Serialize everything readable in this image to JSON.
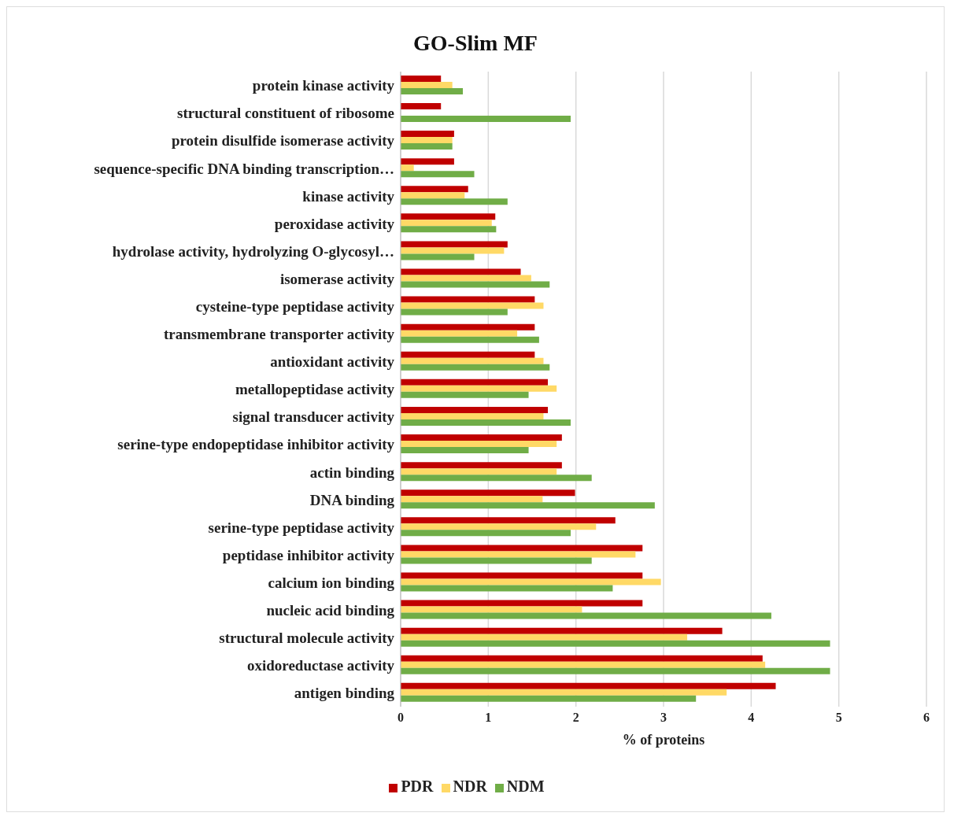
{
  "chart_data": {
    "type": "bar",
    "orientation": "horizontal",
    "title": "GO-Slim MF",
    "xlabel": "% of proteins",
    "categories": [
      "protein kinase activity",
      "structural constituent of ribosome",
      "protein disulfide isomerase activity",
      "sequence-specific DNA binding transcription…",
      "kinase activity",
      "peroxidase activity",
      "hydrolase activity, hydrolyzing O-glycosyl…",
      "isomerase activity",
      "cysteine-type peptidase activity",
      "transmembrane transporter activity",
      "antioxidant activity",
      "metallopeptidase activity",
      "signal transducer activity",
      "serine-type endopeptidase inhibitor activity",
      "actin binding",
      "DNA binding",
      "serine-type peptidase activity",
      "peptidase inhibitor activity",
      "calcium ion binding",
      "nucleic acid binding",
      "structural molecule activity",
      "oxidoreductase activity",
      "antigen binding"
    ],
    "series": [
      {
        "name": "PDR",
        "color": "#c00000",
        "values": [
          0.46,
          0.46,
          0.61,
          0.61,
          0.77,
          1.08,
          1.22,
          1.37,
          1.53,
          1.53,
          1.53,
          1.68,
          1.68,
          1.84,
          1.84,
          1.99,
          2.45,
          2.76,
          2.76,
          2.76,
          3.67,
          4.13,
          4.28
        ]
      },
      {
        "name": "NDR",
        "color": "#ffd966",
        "values": [
          0.59,
          0,
          0.59,
          0.15,
          0.73,
          1.04,
          1.18,
          1.49,
          1.63,
          1.33,
          1.63,
          1.78,
          1.63,
          1.78,
          1.78,
          1.62,
          2.23,
          2.68,
          2.97,
          2.07,
          3.27,
          4.16,
          3.72
        ]
      },
      {
        "name": "NDM",
        "color": "#70ad47",
        "values": [
          0.71,
          1.94,
          0.59,
          0.84,
          1.22,
          1.09,
          0.84,
          1.7,
          1.22,
          1.58,
          1.7,
          1.46,
          1.94,
          1.46,
          2.18,
          2.9,
          1.94,
          2.18,
          2.42,
          4.23,
          4.9,
          4.9,
          3.37
        ]
      }
    ],
    "xlim": [
      0,
      6
    ],
    "xticks": [
      0,
      1,
      2,
      3,
      4,
      5,
      6
    ],
    "grid": "x",
    "legend": "bottom"
  }
}
